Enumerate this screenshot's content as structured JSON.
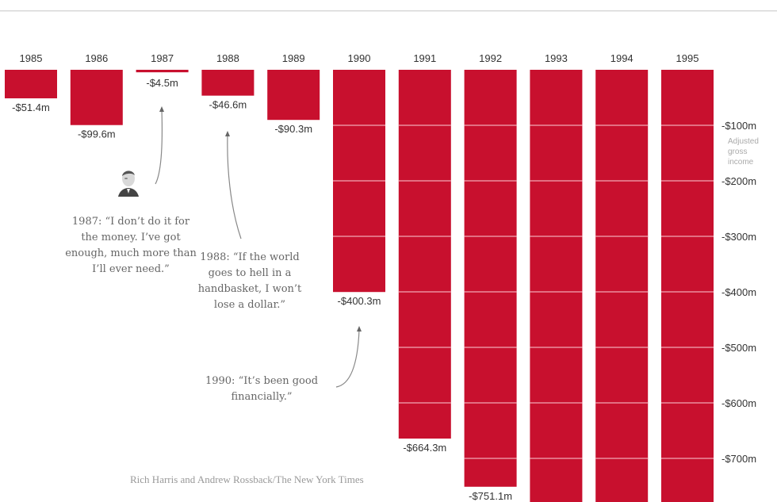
{
  "chart_data": {
    "type": "bar",
    "title": "",
    "orientation": "downward",
    "categories": [
      "1985",
      "1986",
      "1987",
      "1988",
      "1989",
      "1990",
      "1991",
      "1992",
      "1993",
      "1994",
      "1995"
    ],
    "values": [
      -51.4,
      -99.6,
      -4.5,
      -46.6,
      -90.3,
      -400.3,
      -664.3,
      -751.1,
      null,
      null,
      null
    ],
    "value_labels": [
      "-$51.4m",
      "-$99.6m",
      "-$4.5m",
      "-$46.6m",
      "-$90.3m",
      "-$400.3m",
      "-$664.3m",
      "-$751.1m",
      null,
      null,
      null
    ],
    "extends_beyond_view": [
      false,
      false,
      false,
      false,
      false,
      false,
      false,
      false,
      true,
      true,
      true
    ],
    "units": "millions USD",
    "ylabel": "Adjusted gross income",
    "y_ticks": [
      -100,
      -200,
      -300,
      -400,
      -500,
      -600,
      -700
    ],
    "y_tick_labels": [
      "-$100m",
      "-$200m",
      "-$300m",
      "-$400m",
      "-$500m",
      "-$600m",
      "-$700m"
    ],
    "ylim": [
      0,
      -780
    ],
    "grid": true,
    "bar_color": "#c8102e",
    "grid_color": "#f2a8b4"
  },
  "annotations": [
    {
      "year_label": "1987:",
      "text": "“I don’t do it for the money. I’ve got enough, much more than I’ll ever need.”",
      "lines": [
        "1987: “I don’t do it for",
        "the money. I’ve got",
        "enough, much more than",
        "I’ll ever need.”"
      ],
      "points_to": "1987"
    },
    {
      "year_label": "1988:",
      "text": "“If the world goes to hell in a handbasket, I won’t lose a dollar.”",
      "lines": [
        "1988: “If the world",
        "goes to hell in a",
        "handbasket, I won’t",
        "lose a dollar.”"
      ],
      "points_to": "1988"
    },
    {
      "year_label": "1990:",
      "text": "“It’s been good financially.”",
      "lines": [
        "1990: “It’s been good",
        "financially.”"
      ],
      "points_to": "1990"
    }
  ],
  "photo": {
    "icon": "portrait-photo-icon",
    "alt": "Donald Trump headshot"
  },
  "credit": "Rich Harris and Andrew Rossback/The New York Times"
}
